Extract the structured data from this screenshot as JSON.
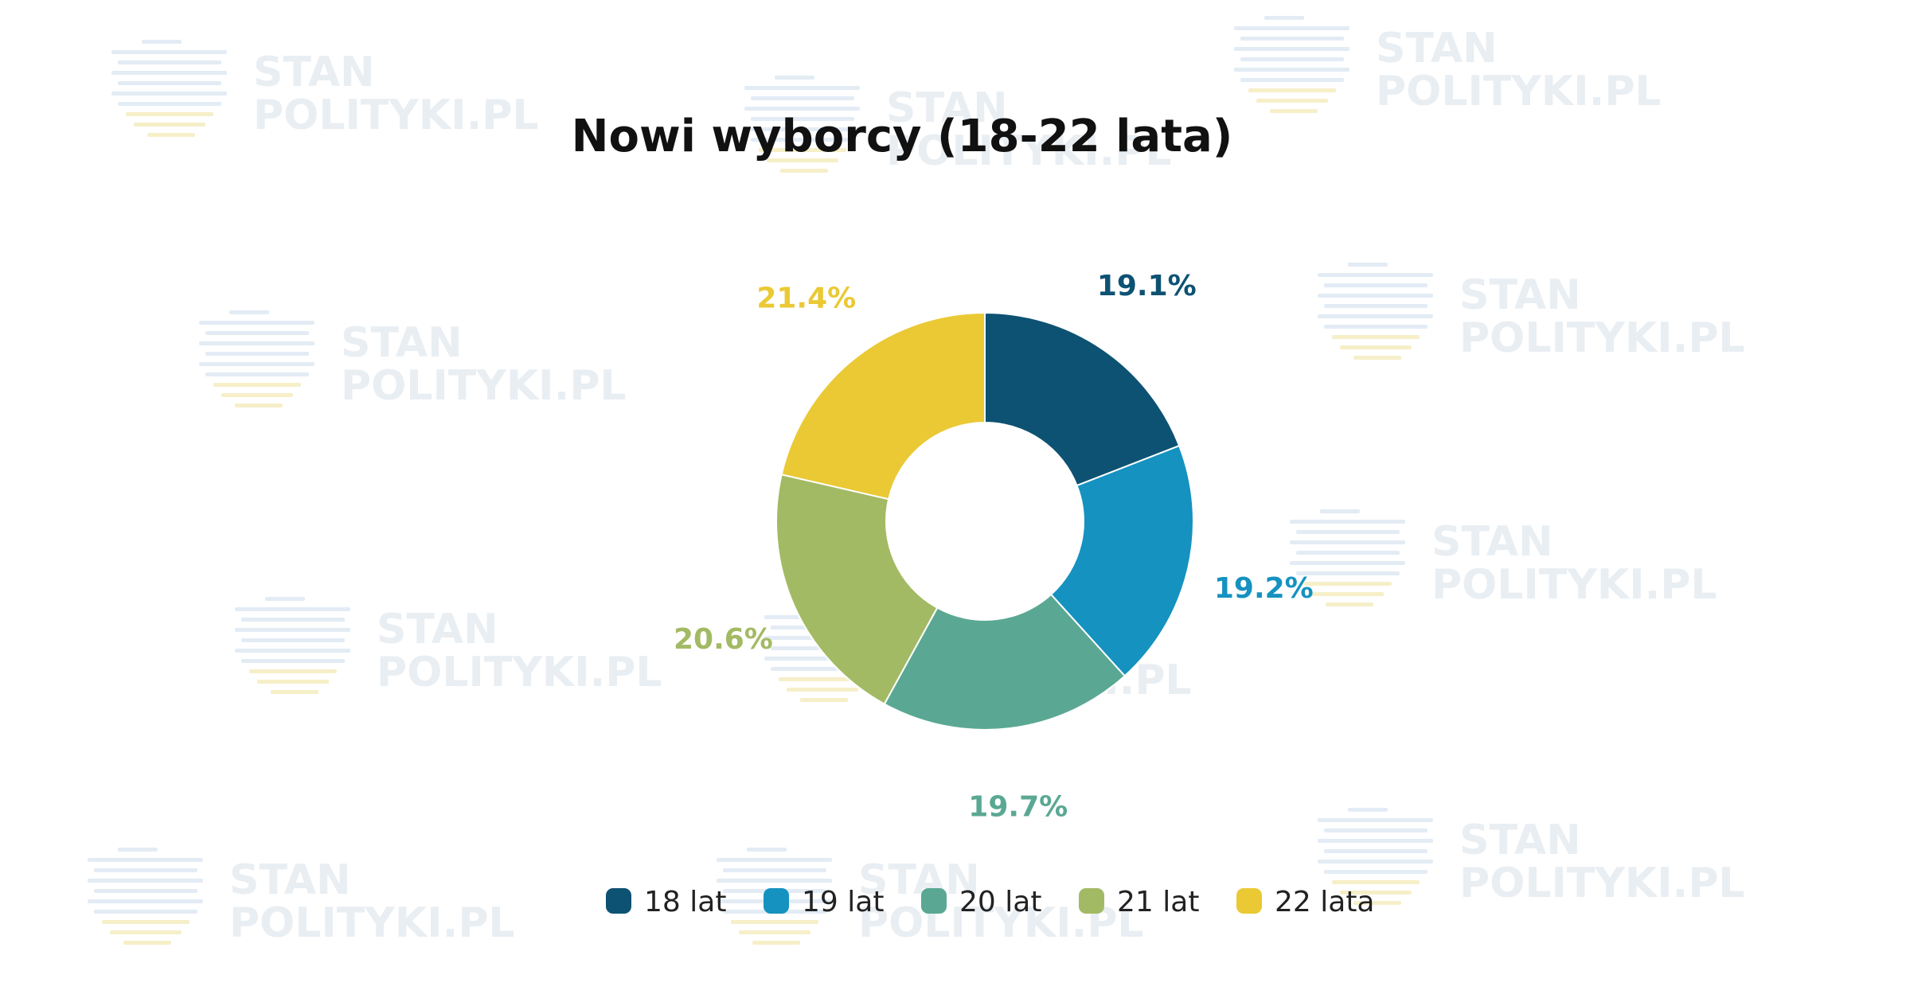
{
  "watermark": {
    "line1": "STAN",
    "line2": "POLITYKI.PL"
  },
  "chart_data": {
    "type": "pie",
    "title": "Nowi wyborcy (18-22 lata)",
    "donut": true,
    "legend_position": "bottom",
    "categories": [
      "18 lat",
      "19 lat",
      "20 lat",
      "21 lat",
      "22 lata"
    ],
    "values": [
      19.1,
      19.2,
      19.7,
      20.6,
      21.4
    ],
    "value_labels": [
      "19.1%",
      "19.2%",
      "19.7%",
      "20.6%",
      "21.4%"
    ],
    "colors": [
      "#0d5273",
      "#1592c0",
      "#5aa893",
      "#a3ba64",
      "#eac934"
    ]
  }
}
